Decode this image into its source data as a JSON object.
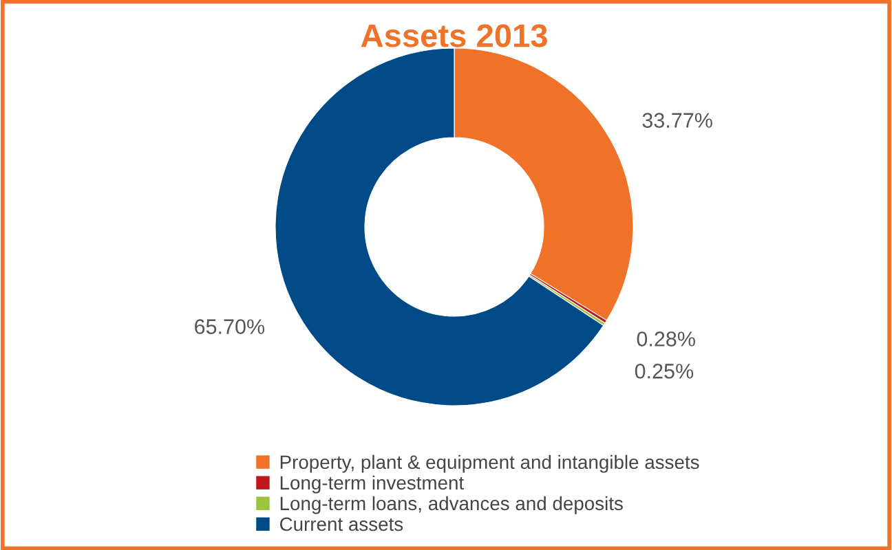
{
  "chart_data": {
    "type": "donut",
    "title": "Assets 2013",
    "categories": [
      "Property, plant & equipment and intangible assets",
      "Long-term investment",
      "Long-term loans, advances and deposits",
      "Current assets"
    ],
    "values": [
      33.77,
      0.28,
      0.25,
      65.7
    ],
    "value_labels": [
      "33.77%",
      "0.28%",
      "0.25%",
      "65.70%"
    ],
    "colors": [
      "#f07228",
      "#c0161d",
      "#9ac43c",
      "#004b87"
    ],
    "legend": "bottom"
  }
}
